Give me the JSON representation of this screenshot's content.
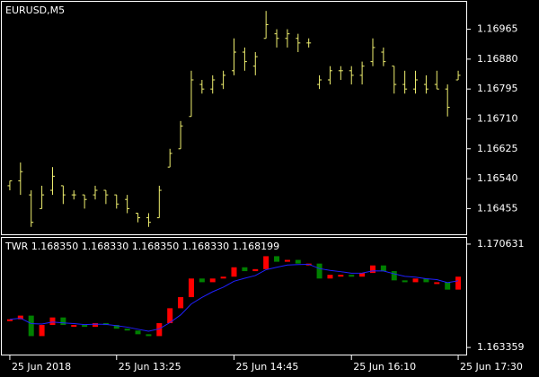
{
  "chart_data": [
    {
      "type": "ohlc",
      "title": "EURUSD,M5",
      "color": "#f0f070",
      "categories": [
        "25 Jun 2018",
        null,
        null,
        null,
        null,
        null,
        null,
        null,
        null,
        null,
        "25 Jun 13:25",
        null,
        null,
        null,
        null,
        null,
        null,
        null,
        null,
        null,
        null,
        "25 Jun 14:45",
        null,
        null,
        null,
        null,
        null,
        null,
        null,
        null,
        null,
        null,
        "25 Jun 16:10",
        null,
        null,
        null,
        null,
        null,
        null,
        null,
        null,
        null,
        "25 Jun 17:30"
      ],
      "open": [
        1.1652,
        1.16534,
        1.16494,
        1.16455,
        1.16507,
        1.1652,
        1.16494,
        1.16494,
        1.16494,
        1.16507,
        1.16494,
        1.16481,
        1.16442,
        1.16429,
        1.16429,
        1.16573,
        1.16625,
        1.16717,
        1.16808,
        1.16795,
        1.16808,
        1.16847,
        1.169,
        1.1686,
        1.16939,
        1.16952,
        1.16939,
        1.16939,
        1.16926,
        1.16808,
        1.16821,
        1.16847,
        1.16847,
        1.16834,
        1.16873,
        1.169,
        1.1686,
        1.16808,
        1.16795,
        1.16808,
        1.16808,
        1.16795,
        1.16821
      ],
      "high": [
        1.16534,
        1.16586,
        1.16507,
        1.1652,
        1.16573,
        1.1652,
        1.16507,
        1.16494,
        1.1652,
        1.16507,
        1.16494,
        1.16494,
        1.16442,
        1.16442,
        1.1652,
        1.16625,
        1.16704,
        1.16847,
        1.16821,
        1.16834,
        1.16847,
        1.16939,
        1.16913,
        1.169,
        1.17017,
        1.16965,
        1.16965,
        1.16952,
        1.16939,
        1.16834,
        1.1686,
        1.1686,
        1.1686,
        1.16873,
        1.16939,
        1.16913,
        1.1686,
        1.16847,
        1.16847,
        1.16834,
        1.16847,
        1.16808,
        1.16847
      ],
      "low": [
        1.16507,
        1.16494,
        1.16403,
        1.16455,
        1.16494,
        1.16468,
        1.16481,
        1.16455,
        1.16481,
        1.16468,
        1.16455,
        1.16442,
        1.16416,
        1.16403,
        1.16429,
        1.16573,
        1.16625,
        1.16717,
        1.16782,
        1.16782,
        1.16795,
        1.16834,
        1.16847,
        1.16834,
        1.16939,
        1.16913,
        1.16913,
        1.169,
        1.16913,
        1.16795,
        1.16808,
        1.16821,
        1.16808,
        1.16808,
        1.1686,
        1.1686,
        1.16782,
        1.16782,
        1.16782,
        1.16782,
        1.16795,
        1.16717,
        1.16821
      ],
      "close": [
        1.16534,
        1.1656,
        1.16416,
        1.16494,
        1.16547,
        1.16494,
        1.16494,
        1.16481,
        1.16507,
        1.16494,
        1.16468,
        1.16455,
        1.16429,
        1.16416,
        1.16507,
        1.16612,
        1.1669,
        1.16821,
        1.16795,
        1.16821,
        1.16834,
        1.169,
        1.16873,
        1.16887,
        1.16978,
        1.16939,
        1.16952,
        1.16926,
        1.16926,
        1.16821,
        1.16847,
        1.16847,
        1.16834,
        1.1686,
        1.16913,
        1.16873,
        1.16808,
        1.16795,
        1.16821,
        1.16795,
        1.16795,
        1.16743,
        1.16834
      ],
      "ylim": [
        1.16382,
        1.17043
      ],
      "yticks": [
        1.16965,
        {
          "value": 1.1688,
          "label": "1.16880"
        },
        1.16795,
        {
          "value": 1.1671,
          "label": "1.16710"
        },
        1.16625,
        {
          "value": 1.1654,
          "label": "1.16540"
        },
        1.16455
      ]
    },
    {
      "type": "indicator",
      "title": "TWR 1.168350 1.168330 1.168350 1.168330 1.168199",
      "up_color": "#ff0000",
      "down_color": "#008000",
      "line_color": "#2020ff",
      "values": [
        1.16534,
        1.1656,
        1.16416,
        1.16494,
        1.16547,
        1.16494,
        1.16494,
        1.16481,
        1.16507,
        1.16494,
        1.16468,
        1.16455,
        1.16429,
        1.16416,
        1.16507,
        1.16612,
        1.1669,
        1.16821,
        1.16795,
        1.16821,
        1.16834,
        1.169,
        1.16873,
        1.16887,
        1.16978,
        1.16939,
        1.16952,
        1.16926,
        1.16926,
        1.16821,
        1.16847,
        1.16847,
        1.16834,
        1.1686,
        1.16913,
        1.16873,
        1.16808,
        1.16795,
        1.16821,
        1.16795,
        1.16795,
        1.16743,
        1.16834
      ],
      "line_values": [
        1.16534,
        1.16542,
        1.16504,
        1.16501,
        1.16515,
        1.16509,
        1.16504,
        1.16497,
        1.165,
        1.16498,
        1.16489,
        1.16479,
        1.16464,
        1.1645,
        1.16467,
        1.16511,
        1.16565,
        1.16642,
        1.16688,
        1.16728,
        1.1676,
        1.16802,
        1.16823,
        1.16842,
        1.16883,
        1.169,
        1.16916,
        1.16919,
        1.16921,
        1.16891,
        1.16878,
        1.16869,
        1.16858,
        1.16859,
        1.16875,
        1.16874,
        1.16854,
        1.16836,
        1.16831,
        1.1682,
        1.16813,
        1.16792,
        1.16805
      ],
      "ylim": [
        1.16286,
        1.17107
      ],
      "yticks": [
        1.170631,
        1.163359
      ]
    }
  ]
}
